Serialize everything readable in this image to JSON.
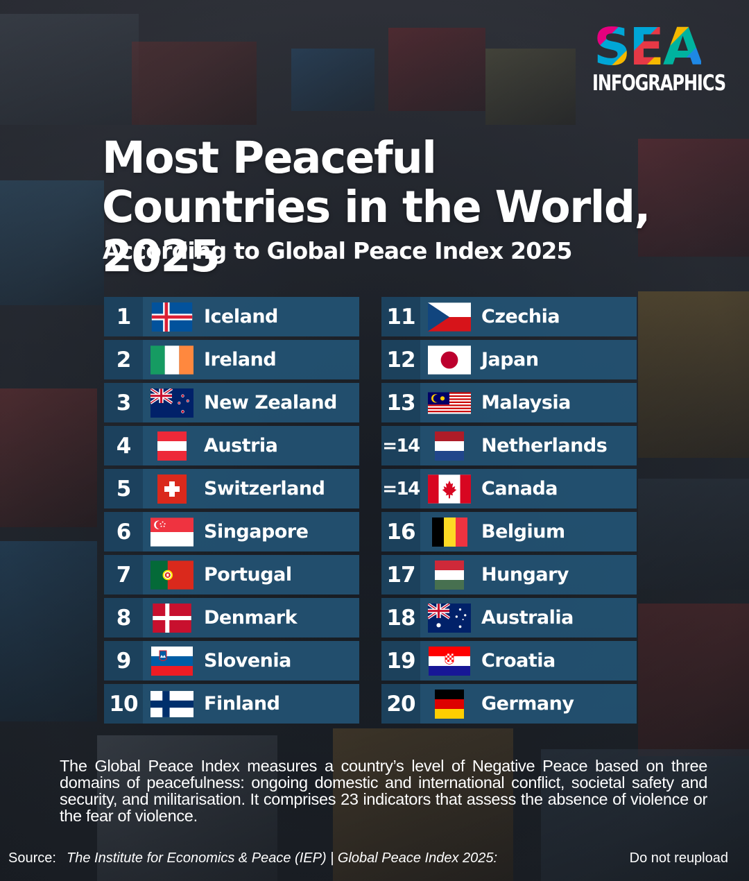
{
  "logo": {
    "brand": "SEA",
    "sub": "INFOGRAPHICS"
  },
  "title": "Most Peaceful Countries in the World, 2025",
  "subtitle": "According to Global Peace Index 2025",
  "colors": {
    "row_bg": "#235578",
    "rank_bg": "#1c405c",
    "text": "#ffffff"
  },
  "rankings": [
    {
      "rank": "1",
      "country": "Iceland",
      "flag": "iceland-flag-icon"
    },
    {
      "rank": "2",
      "country": "Ireland",
      "flag": "ireland-flag-icon"
    },
    {
      "rank": "3",
      "country": "New Zealand",
      "flag": "new-zealand-flag-icon"
    },
    {
      "rank": "4",
      "country": "Austria",
      "flag": "austria-flag-icon"
    },
    {
      "rank": "5",
      "country": "Switzerland",
      "flag": "switzerland-flag-icon"
    },
    {
      "rank": "6",
      "country": "Singapore",
      "flag": "singapore-flag-icon"
    },
    {
      "rank": "7",
      "country": "Portugal",
      "flag": "portugal-flag-icon"
    },
    {
      "rank": "8",
      "country": "Denmark",
      "flag": "denmark-flag-icon"
    },
    {
      "rank": "9",
      "country": "Slovenia",
      "flag": "slovenia-flag-icon"
    },
    {
      "rank": "10",
      "country": "Finland",
      "flag": "finland-flag-icon"
    },
    {
      "rank": "11",
      "country": "Czechia",
      "flag": "czechia-flag-icon"
    },
    {
      "rank": "12",
      "country": "Japan",
      "flag": "japan-flag-icon"
    },
    {
      "rank": "13",
      "country": "Malaysia",
      "flag": "malaysia-flag-icon"
    },
    {
      "rank": "=14",
      "country": "Netherlands",
      "flag": "netherlands-flag-icon"
    },
    {
      "rank": "=14",
      "country": "Canada",
      "flag": "canada-flag-icon"
    },
    {
      "rank": "16",
      "country": "Belgium",
      "flag": "belgium-flag-icon"
    },
    {
      "rank": "17",
      "country": "Hungary",
      "flag": "hungary-flag-icon"
    },
    {
      "rank": "18",
      "country": "Australia",
      "flag": "australia-flag-icon"
    },
    {
      "rank": "19",
      "country": "Croatia",
      "flag": "croatia-flag-icon"
    },
    {
      "rank": "20",
      "country": "Germany",
      "flag": "germany-flag-icon"
    }
  ],
  "description": "The Global Peace Index measures a country’s level of Negative Peace based on three domains of peacefulness: ongoing domestic and international conflict, societal safety and security, and militarisation. It comprises 23 indicators that assess the absence of violence or the fear of violence.",
  "source": {
    "label": "Source:",
    "text": "The Institute for Economics & Peace (IEP) | Global Peace Index 2025:"
  },
  "notice": "Do not reupload"
}
